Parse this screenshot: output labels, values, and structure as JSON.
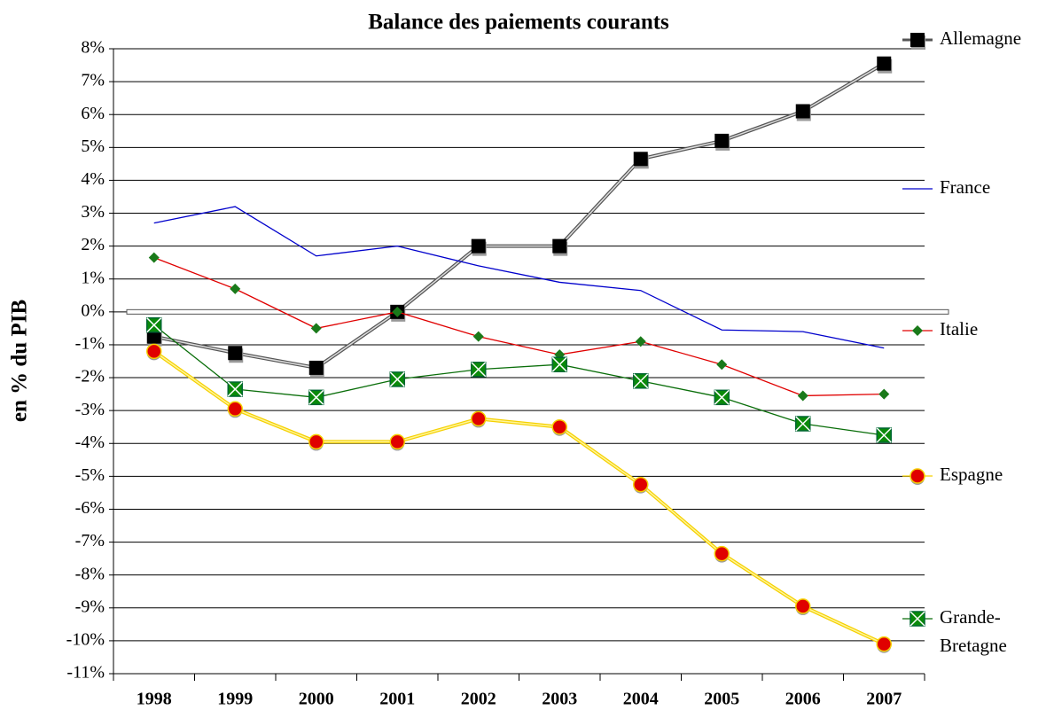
{
  "chart_data": {
    "type": "line",
    "title": "Balance des paiements courants",
    "y_label": "en % du PIB",
    "categories": [
      "1998",
      "1999",
      "2000",
      "2001",
      "2002",
      "2003",
      "2004",
      "2005",
      "2006",
      "2007"
    ],
    "series": [
      {
        "name": "Allemagne",
        "color": "#555555",
        "marker": "square",
        "marker_color": "#000000",
        "values": [
          -0.75,
          -1.25,
          -1.7,
          0.0,
          2.0,
          2.0,
          4.65,
          5.2,
          6.1,
          7.55
        ]
      },
      {
        "name": "France",
        "color": "#0000cc",
        "marker": "none",
        "marker_color": "#0000cc",
        "values": [
          2.7,
          3.2,
          1.7,
          2.0,
          1.4,
          0.9,
          0.65,
          -0.55,
          -0.6,
          -1.1
        ]
      },
      {
        "name": "Italie",
        "color": "#e00000",
        "marker": "diamond",
        "marker_color": "#1a7a1a",
        "values": [
          1.65,
          0.7,
          -0.5,
          0.0,
          -0.75,
          -1.3,
          -0.9,
          -1.6,
          -2.55,
          -2.5
        ]
      },
      {
        "name": "Espagne",
        "color": "#f5d000",
        "marker": "circle",
        "marker_color": "#e00000",
        "values": [
          -1.2,
          -2.95,
          -3.95,
          -3.95,
          -3.25,
          -3.5,
          -5.25,
          -7.35,
          -8.95,
          -10.1
        ]
      },
      {
        "name": "Grande-Bretagne",
        "color": "#0a6e0a",
        "marker": "xsquare",
        "marker_color": "#0a8a0a",
        "values": [
          -0.4,
          -2.35,
          -2.6,
          -2.05,
          -1.75,
          -1.6,
          -2.1,
          -2.6,
          -3.4,
          -3.75
        ]
      }
    ],
    "ylim": [
      -11,
      8
    ],
    "yticks": [
      {
        "value": -11,
        "label": "-11%"
      },
      {
        "value": -10,
        "label": "-10%"
      },
      {
        "value": -9,
        "label": "-9%"
      },
      {
        "value": -8,
        "label": "-8%"
      },
      {
        "value": -7,
        "label": "-7%"
      },
      {
        "value": -6,
        "label": "-6%"
      },
      {
        "value": -5,
        "label": "-5%"
      },
      {
        "value": -4,
        "label": "-4%"
      },
      {
        "value": -3,
        "label": "-3%"
      },
      {
        "value": -2,
        "label": "-2%"
      },
      {
        "value": -1,
        "label": "-1%"
      },
      {
        "value": 0,
        "label": "0%"
      },
      {
        "value": 1,
        "label": "1%"
      },
      {
        "value": 2,
        "label": "2%"
      },
      {
        "value": 3,
        "label": "3%"
      },
      {
        "value": 4,
        "label": "4%"
      },
      {
        "value": 5,
        "label": "5%"
      },
      {
        "value": 6,
        "label": "6%"
      },
      {
        "value": 7,
        "label": "7%"
      },
      {
        "value": 8,
        "label": "8%"
      }
    ],
    "grid": true,
    "legend": "right"
  }
}
